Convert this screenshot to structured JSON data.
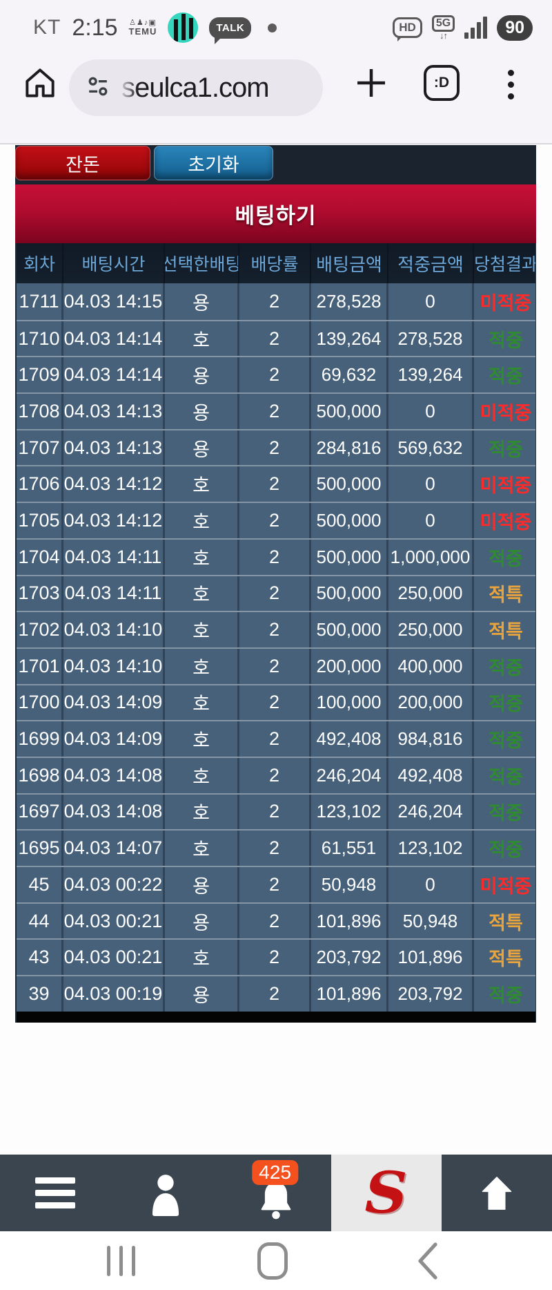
{
  "status_bar": {
    "carrier": "KT",
    "time": "2:15",
    "temu_label": "TEMU",
    "talk_label": "TALK",
    "hd_label": "HD",
    "network_label": "5G",
    "battery_level": "90"
  },
  "browser": {
    "url": "seulca1.com",
    "tab_badge": ":D"
  },
  "page": {
    "buttons": {
      "change_label": "잔돈",
      "reset_label": "초기화"
    },
    "banner_title": "베팅하기",
    "table": {
      "headers": [
        "회차",
        "배팅시간",
        "선택한배팅",
        "배당률",
        "배팅금액",
        "적중금액",
        "당첨결과"
      ],
      "rows": [
        {
          "round": "1711",
          "time": "04.03 14:15",
          "pick": "용",
          "odds": "2",
          "amount": "278,528",
          "win": "0",
          "result": "미적중",
          "type": "miss"
        },
        {
          "round": "1710",
          "time": "04.03 14:14",
          "pick": "호",
          "odds": "2",
          "amount": "139,264",
          "win": "278,528",
          "result": "적중",
          "type": "hit"
        },
        {
          "round": "1709",
          "time": "04.03 14:14",
          "pick": "용",
          "odds": "2",
          "amount": "69,632",
          "win": "139,264",
          "result": "적중",
          "type": "hit"
        },
        {
          "round": "1708",
          "time": "04.03 14:13",
          "pick": "용",
          "odds": "2",
          "amount": "500,000",
          "win": "0",
          "result": "미적중",
          "type": "miss"
        },
        {
          "round": "1707",
          "time": "04.03 14:13",
          "pick": "용",
          "odds": "2",
          "amount": "284,816",
          "win": "569,632",
          "result": "적중",
          "type": "hit"
        },
        {
          "round": "1706",
          "time": "04.03 14:12",
          "pick": "호",
          "odds": "2",
          "amount": "500,000",
          "win": "0",
          "result": "미적중",
          "type": "miss"
        },
        {
          "round": "1705",
          "time": "04.03 14:12",
          "pick": "호",
          "odds": "2",
          "amount": "500,000",
          "win": "0",
          "result": "미적중",
          "type": "miss"
        },
        {
          "round": "1704",
          "time": "04.03 14:11",
          "pick": "호",
          "odds": "2",
          "amount": "500,000",
          "win": "1,000,000",
          "result": "적중",
          "type": "hit"
        },
        {
          "round": "1703",
          "time": "04.03 14:11",
          "pick": "호",
          "odds": "2",
          "amount": "500,000",
          "win": "250,000",
          "result": "적특",
          "type": "special"
        },
        {
          "round": "1702",
          "time": "04.03 14:10",
          "pick": "호",
          "odds": "2",
          "amount": "500,000",
          "win": "250,000",
          "result": "적특",
          "type": "special"
        },
        {
          "round": "1701",
          "time": "04.03 14:10",
          "pick": "호",
          "odds": "2",
          "amount": "200,000",
          "win": "400,000",
          "result": "적중",
          "type": "hit"
        },
        {
          "round": "1700",
          "time": "04.03 14:09",
          "pick": "호",
          "odds": "2",
          "amount": "100,000",
          "win": "200,000",
          "result": "적중",
          "type": "hit"
        },
        {
          "round": "1699",
          "time": "04.03 14:09",
          "pick": "호",
          "odds": "2",
          "amount": "492,408",
          "win": "984,816",
          "result": "적중",
          "type": "hit"
        },
        {
          "round": "1698",
          "time": "04.03 14:08",
          "pick": "호",
          "odds": "2",
          "amount": "246,204",
          "win": "492,408",
          "result": "적중",
          "type": "hit"
        },
        {
          "round": "1697",
          "time": "04.03 14:08",
          "pick": "호",
          "odds": "2",
          "amount": "123,102",
          "win": "246,204",
          "result": "적중",
          "type": "hit"
        },
        {
          "round": "1695",
          "time": "04.03 14:07",
          "pick": "호",
          "odds": "2",
          "amount": "61,551",
          "win": "123,102",
          "result": "적중",
          "type": "hit"
        },
        {
          "round": "45",
          "time": "04.03 00:22",
          "pick": "용",
          "odds": "2",
          "amount": "50,948",
          "win": "0",
          "result": "미적중",
          "type": "miss"
        },
        {
          "round": "44",
          "time": "04.03 00:21",
          "pick": "용",
          "odds": "2",
          "amount": "101,896",
          "win": "50,948",
          "result": "적특",
          "type": "special"
        },
        {
          "round": "43",
          "time": "04.03 00:21",
          "pick": "호",
          "odds": "2",
          "amount": "203,792",
          "win": "101,896",
          "result": "적특",
          "type": "special"
        },
        {
          "round": "39",
          "time": "04.03 00:19",
          "pick": "용",
          "odds": "2",
          "amount": "101,896",
          "win": "203,792",
          "result": "적중",
          "type": "hit"
        }
      ]
    }
  },
  "bottom_nav": {
    "notification_badge": "425"
  },
  "colors": {
    "button_red": "#b30b10",
    "button_blue": "#1e76ac",
    "banner_red": "#b00c2f",
    "row_bg": "#47617a",
    "header_bg": "#15202d",
    "header_text": "#6ca7d8",
    "result_miss": "#ff2a2a",
    "result_hit": "#2f8b2f",
    "result_special": "#e9a43c",
    "badge_orange": "#f4511e",
    "nav_bg": "#3b454f"
  }
}
